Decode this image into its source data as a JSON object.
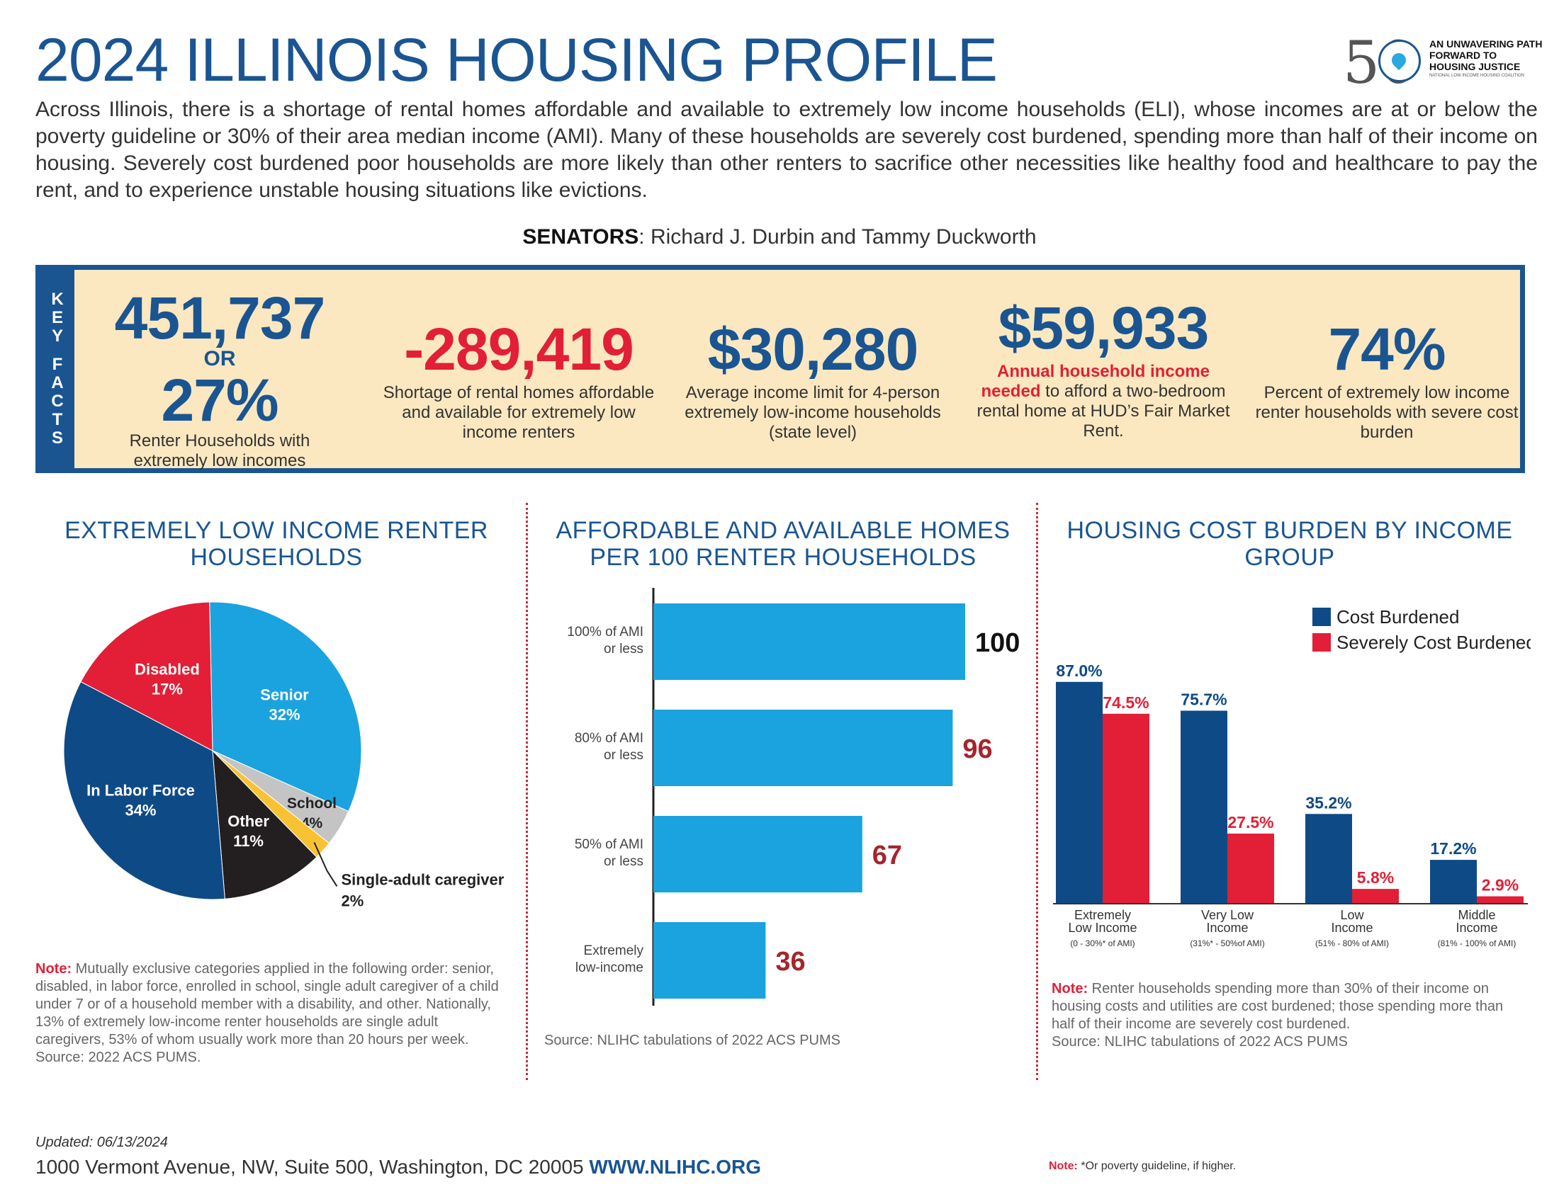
{
  "header": {
    "title": "2024 ILLINOIS HOUSING PROFILE",
    "intro": "Across Illinois, there is a shortage of rental homes affordable and available to extremely low income households (ELI), whose incomes are at or below the poverty guideline or 30% of their area median income (AMI). Many of these households are severely cost burdened, spending more than half of their income on housing. Severely cost burdened poor households are more likely than other renters to sacrifice other necessities like healthy food and healthcare to pay the rent, and to experience unstable housing situations like evictions.",
    "senators_label": "SENATORS",
    "senators_names": ": Richard J. Durbin and Tammy Duckworth"
  },
  "logo": {
    "number": "50",
    "tagline": "AN UNWAVERING PATH FORWARD TO HOUSING JUSTICE",
    "org": "NATIONAL LOW INCOME HOUSING COALITION"
  },
  "key_facts": {
    "side_label": [
      "K",
      "E",
      "Y",
      " ",
      "F",
      "A",
      "C",
      "T",
      "S"
    ],
    "facts": [
      {
        "value": "451,737",
        "or": "OR",
        "value2": "27%",
        "desc": "Renter Households with extremely low incomes"
      },
      {
        "value": "-289,419",
        "desc": "Shortage of rental homes affordable and available for extremely low income renters"
      },
      {
        "value": "$30,280",
        "desc": "Average income limit for 4-person extremely low-income households (state level)"
      },
      {
        "value": "$59,933",
        "desc_highlight": "Annual household income needed",
        "desc": " to afford a two-bedroom rental home at HUD’s Fair Market Rent."
      },
      {
        "value": "74%",
        "desc": "Percent of extremely low income renter households with severe cost burden"
      }
    ]
  },
  "sections": {
    "pie_title": "EXTREMELY LOW INCOME RENTER HOUSEHOLDS",
    "bar_title": "AFFORDABLE AND AVAILABLE HOMES PER 100 RENTER HOUSEHOLDS",
    "burden_title": "HOUSING COST BURDEN BY INCOME GROUP",
    "pie_note_label": "Note:",
    "pie_note": " Mutually exclusive categories applied in the following order: senior, disabled, in labor force, enrolled in school, single adult caregiver of a child under 7 or of a household member with a disability, and other. Nationally, 13% of extremely low-income renter households are single adult caregivers, 53% of whom usually work more than 20 hours per week. Source: 2022 ACS PUMS.",
    "bar_source": "Source: NLIHC tabulations of 2022 ACS PUMS",
    "burden_note_label": "Note:",
    "burden_note": " Renter households spending more than 30% of their income on housing costs and utilities are cost burdened; those spending more than half of their income are severely cost burdened.",
    "burden_source": "Source: NLIHC tabulations of 2022 ACS PUMS"
  },
  "chart_data": [
    {
      "type": "pie",
      "title": "EXTREMELY LOW INCOME RENTER HOUSEHOLDS",
      "slices": [
        {
          "name": "Senior",
          "value": 32,
          "label": "32%",
          "color": "#1aa3df"
        },
        {
          "name": "School",
          "value": 4,
          "label": "4%",
          "color": "#c4c4c4"
        },
        {
          "name": "Single-adult caregiver",
          "value": 2,
          "label": "2%",
          "color": "#f9c232"
        },
        {
          "name": "Other",
          "value": 11,
          "label": "11%",
          "color": "#231f20"
        },
        {
          "name": "In Labor Force",
          "value": 34,
          "label": "34%",
          "color": "#0e4a86"
        },
        {
          "name": "Disabled",
          "value": 17,
          "label": "17%",
          "color": "#e21f36"
        }
      ]
    },
    {
      "type": "bar",
      "orientation": "horizontal",
      "title": "AFFORDABLE AND AVAILABLE HOMES PER 100 RENTER HOUSEHOLDS",
      "categories": [
        "100% of AMI or less",
        "80% of AMI or less",
        "50% of AMI or less",
        "Extremely low-income"
      ],
      "category_lines": [
        [
          "100% of AMI",
          "or less"
        ],
        [
          "80% of AMI",
          "or less"
        ],
        [
          "50% of AMI",
          "or less"
        ],
        [
          "Extremely",
          "low-income"
        ]
      ],
      "values": [
        100,
        96,
        67,
        36
      ],
      "value_colors": [
        "#111111",
        "#a4262c",
        "#a4262c",
        "#a4262c"
      ],
      "bar_color": "#1aa3df",
      "xlim": [
        0,
        100
      ]
    },
    {
      "type": "bar",
      "title": "HOUSING COST BURDEN BY INCOME GROUP",
      "categories": [
        "Extremely Low Income",
        "Very Low Income",
        "Low Income",
        "Middle Income"
      ],
      "category_lines": [
        [
          "Extremely",
          "Low Income"
        ],
        [
          "Very Low",
          "Income"
        ],
        [
          "Low",
          "Income"
        ],
        [
          "Middle",
          "Income"
        ]
      ],
      "category_sub": [
        "(0 - 30%* of AMI)",
        "(31%* - 50%of AMI)",
        "(51% - 80% of AMI)",
        "(81% - 100% of AMI)"
      ],
      "series": [
        {
          "name": "Cost Burdened",
          "values": [
            87.0,
            75.7,
            35.2,
            17.2
          ],
          "labels": [
            "87.0%",
            "75.7%",
            "35.2%",
            "17.2%"
          ],
          "color": "#0e4a86"
        },
        {
          "name": "Severely Cost Burdened",
          "values": [
            74.5,
            27.5,
            5.8,
            2.9
          ],
          "labels": [
            "74.5%",
            "27.5%",
            "5.8%",
            "2.9%"
          ],
          "color": "#e21f36"
        }
      ],
      "ylim": [
        0,
        100
      ],
      "legend": "top-right"
    }
  ],
  "footer": {
    "updated": "Updated: 06/13/2024",
    "address": "1000 Vermont Avenue, NW, Suite 500, Washington, DC 20005 ",
    "website": "WWW.NLIHC.ORG",
    "footnote_label": "Note:",
    "footnote": " *Or poverty guideline, if higher."
  }
}
